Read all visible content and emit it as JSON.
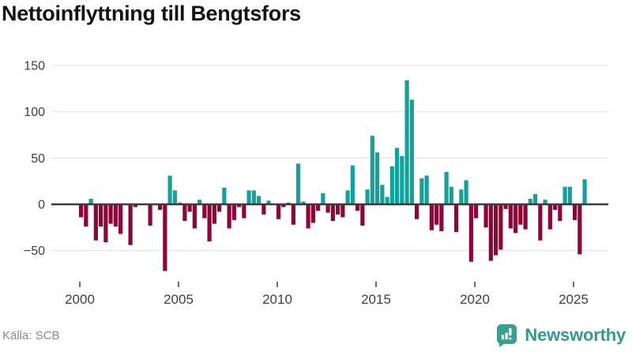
{
  "chart": {
    "title": "Nettoinflyttning till Bengtsfors"
  },
  "chart_data": {
    "type": "bar",
    "title": "Nettoinflyttning till Bengtsfors",
    "frequency": "quarterly",
    "start": "2000-Q1",
    "end": "2025-Q3",
    "values": [
      -14,
      -24,
      6,
      -39,
      -24,
      -41,
      -21,
      -24,
      -32,
      0,
      -44,
      -3,
      0,
      0,
      -23,
      0,
      -6,
      -72,
      31,
      15,
      2,
      -18,
      -8,
      -26,
      5,
      -15,
      -40,
      -21,
      -8,
      18,
      -26,
      -17,
      -3,
      -15,
      15,
      15,
      9,
      -11,
      4,
      0,
      -16,
      -3,
      2,
      -22,
      44,
      3,
      -26,
      -20,
      -7,
      12,
      -9,
      -18,
      -11,
      -14,
      15,
      42,
      -7,
      -23,
      16,
      74,
      56,
      21,
      8,
      41,
      61,
      52,
      134,
      113,
      -16,
      28,
      31,
      -28,
      -22,
      -29,
      35,
      19,
      -30,
      16,
      26,
      -62,
      -15,
      0,
      -25,
      -61,
      -55,
      -49,
      -5,
      -26,
      -31,
      -22,
      -27,
      6,
      11,
      -39,
      5,
      -27,
      -6,
      -18,
      19,
      19,
      -17,
      -54,
      27
    ],
    "ytick_values": [
      150,
      100,
      50,
      0,
      -50
    ],
    "ytick_labels": [
      "150",
      "100",
      "50",
      "0",
      "−50"
    ],
    "xticks": [
      2000,
      2005,
      2010,
      2015,
      2020,
      2025
    ],
    "ylim": [
      -80,
      155
    ],
    "grid": "horizontal",
    "legend": "none",
    "positive_color": "#12a19b",
    "negative_color": "#8e0638",
    "zero_line_color": "#3b3b3b",
    "grid_color": "#e7e7e7"
  },
  "footer": {
    "source": "Källa: SCB",
    "brand": "Newsworthy",
    "brand_color": "#2f9c8e"
  }
}
